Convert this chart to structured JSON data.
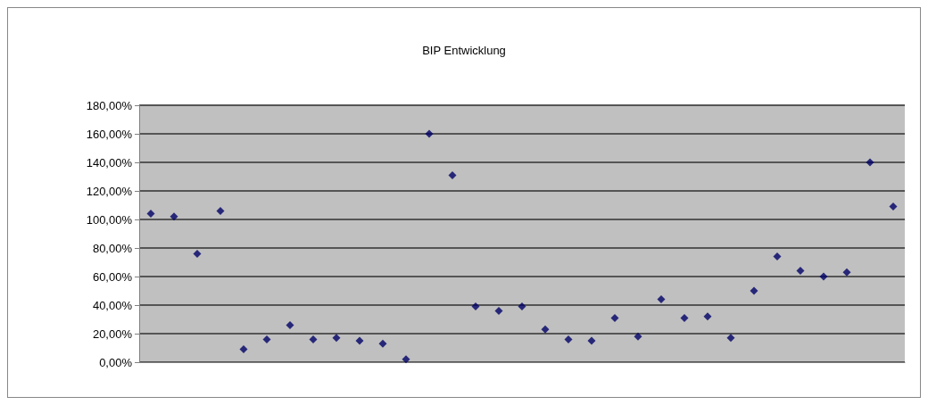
{
  "chart_data": {
    "type": "scatter",
    "title": "BIP Entwicklung",
    "categories": [
      null,
      null,
      null,
      null,
      null,
      null,
      null,
      null,
      null,
      null,
      null,
      null,
      null,
      null,
      null,
      null,
      null,
      null,
      null,
      null,
      null,
      null,
      null,
      null,
      null,
      null,
      null,
      null,
      null,
      null,
      null,
      null,
      null
    ],
    "series": [
      {
        "color": "#000066",
        "values": [
          104,
          102,
          76,
          106,
          9,
          16,
          26,
          16,
          17,
          15,
          13,
          2,
          160,
          131,
          39,
          36,
          39,
          23,
          16,
          15,
          31,
          18,
          44,
          31,
          32,
          17,
          50,
          74,
          64,
          60,
          63,
          140,
          109
        ]
      }
    ],
    "ylim": [
      0,
      180
    ],
    "yticks": [
      {
        "value": 0,
        "label": "0,00%"
      },
      {
        "value": 20,
        "label": "20,00%"
      },
      {
        "value": 40,
        "label": "40,00%"
      },
      {
        "value": 60,
        "label": "60,00%"
      },
      {
        "value": 80,
        "label": "80,00%"
      },
      {
        "value": 100,
        "label": "100,00%"
      },
      {
        "value": 120,
        "label": "120,00%"
      },
      {
        "value": 140,
        "label": "140,00%"
      },
      {
        "value": 160,
        "label": "160,00%"
      },
      {
        "value": 180,
        "label": "180,00%"
      }
    ],
    "grid": "y",
    "marker": "diamond",
    "tick_labels": "y"
  }
}
